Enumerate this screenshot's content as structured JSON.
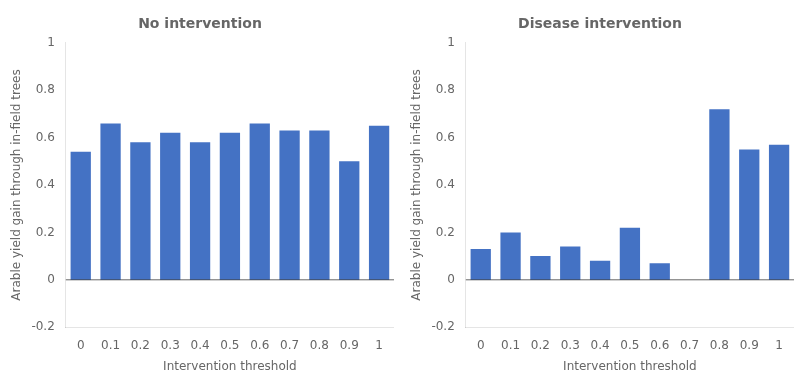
{
  "chart_data": [
    {
      "type": "bar",
      "title": "No intervention",
      "x_label": "Intervention threshold",
      "y_label": "Arable yield gain through in-field trees",
      "categories": [
        "0",
        "0.1",
        "0.2",
        "0.3",
        "0.4",
        "0.5",
        "0.6",
        "0.7",
        "0.8",
        "0.9",
        "1"
      ],
      "values": [
        0.54,
        0.66,
        0.58,
        0.62,
        0.58,
        0.62,
        0.66,
        0.63,
        0.63,
        0.5,
        0.65
      ],
      "color": "#4472c4",
      "ylim": [
        -0.2,
        1.0
      ],
      "yticks": [
        -0.2,
        0,
        0.2,
        0.4,
        0.6,
        0.8,
        1
      ],
      "grid": false
    },
    {
      "type": "bar",
      "title": "Disease intervention",
      "x_label": "Intervention threshold",
      "y_label": "Arable yield gain through in-field trees",
      "categories": [
        "0",
        "0.1",
        "0.2",
        "0.3",
        "0.4",
        "0.5",
        "0.6",
        "0.7",
        "0.8",
        "0.9",
        "1"
      ],
      "values": [
        0.13,
        0.2,
        0.1,
        0.14,
        0.08,
        0.22,
        0.07,
        0.0,
        0.72,
        0.55,
        0.57
      ],
      "color": "#4472c4",
      "ylim": [
        -0.2,
        1.0
      ],
      "yticks": [
        -0.2,
        0,
        0.2,
        0.4,
        0.6,
        0.8,
        1
      ],
      "grid": false
    }
  ]
}
